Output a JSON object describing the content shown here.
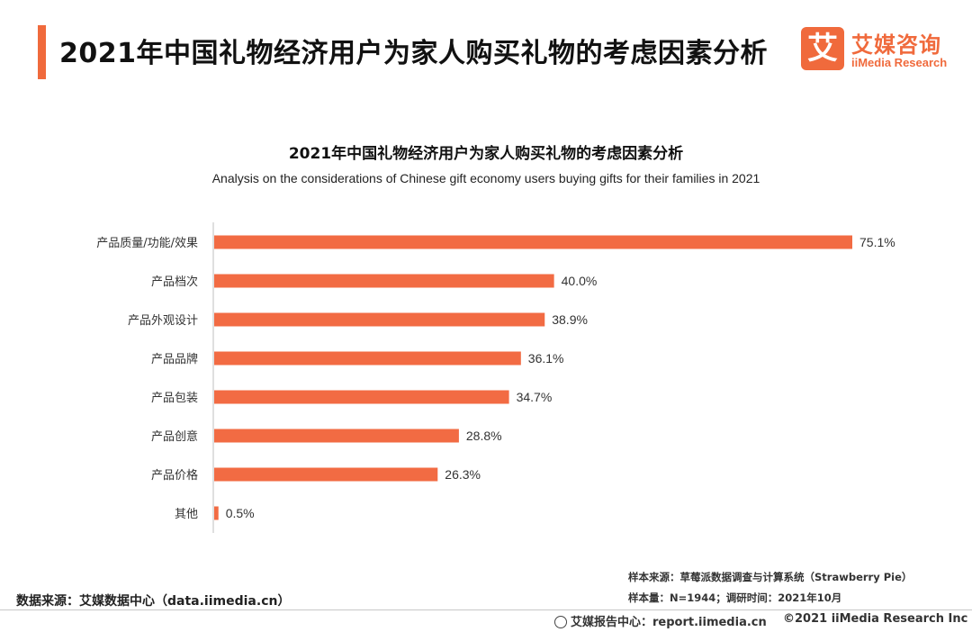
{
  "header": {
    "title": "2021年中国礼物经济用户为家人购买礼物的考虑因素分析"
  },
  "brand": {
    "mark": "艾",
    "name_cn": "艾媒咨询",
    "name_en": "iiMedia Research",
    "color": "#f06a3c"
  },
  "chart_data": {
    "type": "bar",
    "orientation": "horizontal",
    "title": "2021年中国礼物经济用户为家人购买礼物的考虑因素分析",
    "subtitle": "Analysis on the considerations of Chinese gift economy users buying gifts for their families in 2021",
    "categories": [
      "产品质量/功能/效果",
      "产品档次",
      "产品外观设计",
      "产品品牌",
      "产品包装",
      "产品创意",
      "产品价格",
      "其他"
    ],
    "values": [
      75.1,
      40.0,
      38.9,
      36.1,
      34.7,
      28.8,
      26.3,
      0.5
    ],
    "value_labels": [
      "75.1%",
      "40.0%",
      "38.9%",
      "36.1%",
      "34.7%",
      "28.8%",
      "26.3%",
      "0.5%"
    ],
    "unit": "%",
    "xlim": [
      0,
      75.1
    ],
    "grid": false,
    "bar_color": "#f26b43"
  },
  "footer": {
    "data_source": "数据来源：艾媒数据中心（data.iimedia.cn）",
    "sample_source": "样本来源：草莓派数据调查与计算系统（Strawberry Pie）",
    "sample_size": "样本量：N=1944；调研时间：2021年10月",
    "report_center": "艾媒报告中心：report.iimedia.cn",
    "copyright": "©2021  iiMedia Research  Inc"
  }
}
